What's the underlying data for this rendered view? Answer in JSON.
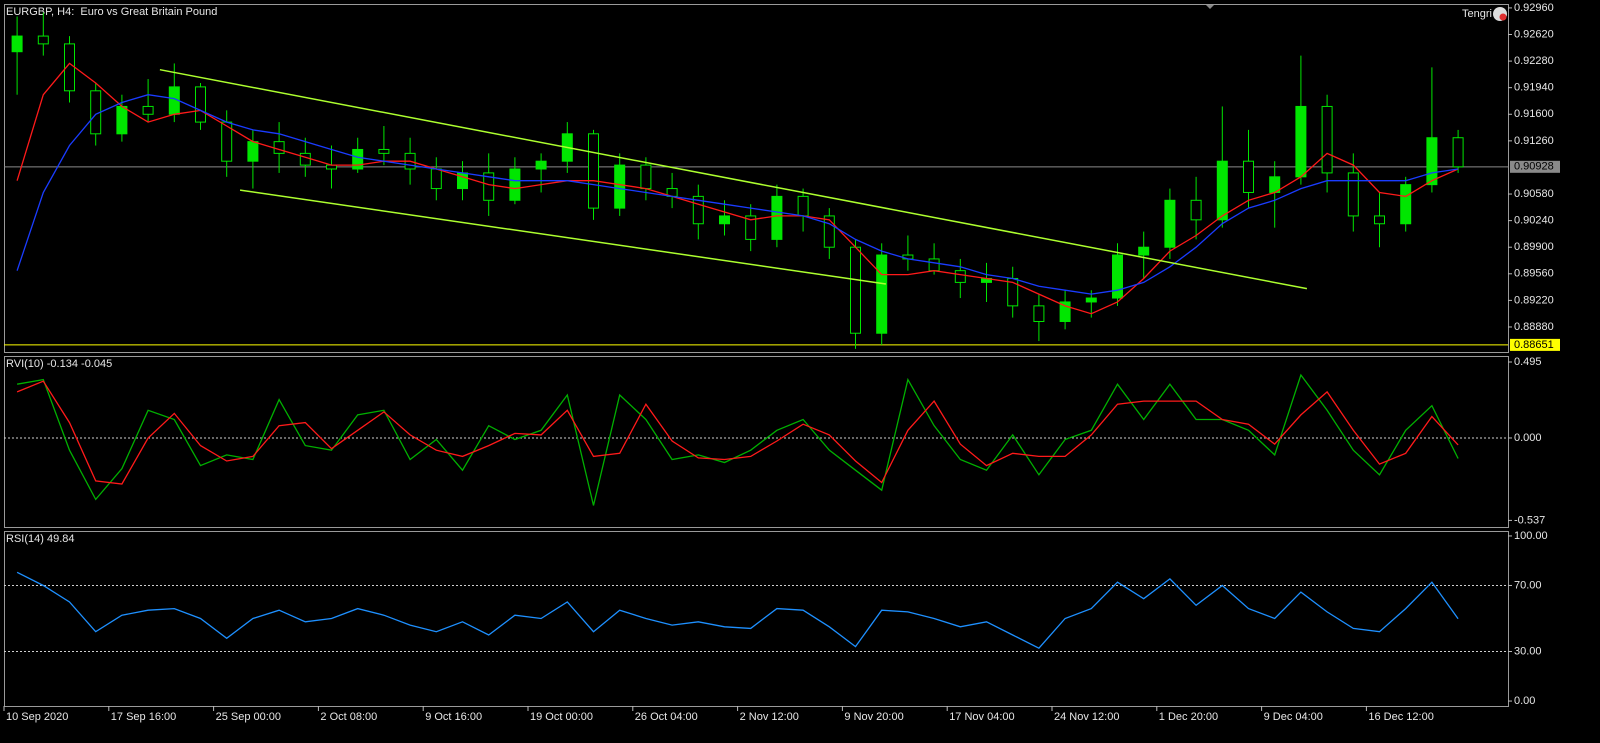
{
  "chart_data": [
    {
      "type": "candlestick",
      "title": "EURGBP, H4:  Euro vs Great Britain Pound",
      "user": "Tengri",
      "color": "#00e600",
      "categories": [
        "10 Sep 2020",
        null,
        null,
        null,
        "17 Sep 16:00",
        null,
        null,
        null,
        "25 Sep 00:00",
        null,
        null,
        null,
        "2 Oct 08:00",
        null,
        null,
        null,
        "9 Oct 16:00",
        null,
        null,
        null,
        "19 Oct 00:00",
        null,
        null,
        null,
        "26 Oct 04:00",
        null,
        null,
        null,
        "2 Nov 12:00",
        null,
        null,
        null,
        "9 Nov 20:00",
        null,
        null,
        null,
        "17 Nov 04:00",
        null,
        null,
        null,
        "24 Nov 12:00",
        null,
        null,
        null,
        "1 Dec 20:00",
        null,
        null,
        null,
        "9 Dec 04:00",
        null,
        null,
        null,
        "16 Dec 12:00",
        null,
        null,
        null
      ],
      "open": [
        0.924,
        0.926,
        0.925,
        0.919,
        0.9135,
        0.917,
        0.916,
        0.9195,
        0.915,
        0.91,
        0.9125,
        0.911,
        0.9095,
        0.909,
        0.9115,
        0.911,
        0.909,
        0.9065,
        0.9085,
        0.905,
        0.909,
        0.91,
        0.9135,
        0.904,
        0.9095,
        0.9065,
        0.9055,
        0.902,
        0.903,
        0.9,
        0.9055,
        0.903,
        0.899,
        0.888,
        0.898,
        0.8975,
        0.896,
        0.8945,
        0.895,
        0.8915,
        0.8895,
        0.892,
        0.8925,
        0.898,
        0.899,
        0.905,
        0.9025,
        0.91,
        0.906,
        0.908,
        0.917,
        0.9085,
        0.903,
        0.902,
        0.907,
        0.913
      ],
      "high": [
        0.9285,
        0.929,
        0.926,
        0.92,
        0.9185,
        0.9205,
        0.9225,
        0.92,
        0.9165,
        0.914,
        0.915,
        0.913,
        0.912,
        0.913,
        0.9145,
        0.913,
        0.9105,
        0.91,
        0.911,
        0.9105,
        0.911,
        0.915,
        0.914,
        0.911,
        0.9105,
        0.9085,
        0.907,
        0.905,
        0.9045,
        0.907,
        0.9065,
        0.904,
        0.9,
        0.8995,
        0.9005,
        0.8995,
        0.8975,
        0.897,
        0.8965,
        0.893,
        0.8935,
        0.8935,
        0.8995,
        0.901,
        0.9065,
        0.908,
        0.917,
        0.914,
        0.91,
        0.9235,
        0.9185,
        0.911,
        0.906,
        0.908,
        0.922,
        0.914
      ],
      "low": [
        0.9185,
        0.9235,
        0.9175,
        0.912,
        0.9125,
        0.915,
        0.915,
        0.914,
        0.908,
        0.9065,
        0.9085,
        0.908,
        0.9065,
        0.9085,
        0.9095,
        0.907,
        0.905,
        0.905,
        0.903,
        0.9045,
        0.906,
        0.9085,
        0.9025,
        0.903,
        0.905,
        0.904,
        0.9,
        0.9005,
        0.8985,
        0.899,
        0.901,
        0.8975,
        0.886,
        0.8865,
        0.896,
        0.8955,
        0.8925,
        0.892,
        0.89,
        0.887,
        0.8885,
        0.89,
        0.8915,
        0.895,
        0.8975,
        0.9,
        0.9015,
        0.904,
        0.9015,
        0.907,
        0.906,
        0.901,
        0.899,
        0.901,
        0.906,
        0.9085
      ],
      "close": [
        0.926,
        0.925,
        0.919,
        0.9135,
        0.917,
        0.916,
        0.9195,
        0.915,
        0.91,
        0.9125,
        0.911,
        0.9095,
        0.909,
        0.9115,
        0.911,
        0.909,
        0.9065,
        0.9085,
        0.905,
        0.909,
        0.91,
        0.9135,
        0.904,
        0.9095,
        0.9065,
        0.9055,
        0.902,
        0.903,
        0.9,
        0.9055,
        0.903,
        0.899,
        0.888,
        0.898,
        0.8975,
        0.896,
        0.8945,
        0.895,
        0.8915,
        0.8895,
        0.892,
        0.8925,
        0.898,
        0.899,
        0.905,
        0.9025,
        0.91,
        0.906,
        0.908,
        0.917,
        0.9085,
        0.903,
        0.902,
        0.907,
        0.913,
        0.90928
      ],
      "series": [
        {
          "color": "#ff1a1a",
          "values": [
            0.9075,
            0.9185,
            0.9225,
            0.92,
            0.917,
            0.915,
            0.916,
            0.9165,
            0.9145,
            0.9125,
            0.9115,
            0.9105,
            0.9095,
            0.9095,
            0.91,
            0.91,
            0.909,
            0.908,
            0.907,
            0.9065,
            0.907,
            0.9075,
            0.9075,
            0.907,
            0.9065,
            0.9055,
            0.9045,
            0.9035,
            0.9025,
            0.903,
            0.903,
            0.9025,
            0.899,
            0.8955,
            0.8955,
            0.896,
            0.8955,
            0.895,
            0.8945,
            0.893,
            0.8915,
            0.8905,
            0.892,
            0.895,
            0.8985,
            0.9005,
            0.903,
            0.905,
            0.906,
            0.908,
            0.911,
            0.9095,
            0.906,
            0.9055,
            0.9075,
            0.909
          ]
        },
        {
          "color": "#1a3cff",
          "values": [
            0.896,
            0.906,
            0.912,
            0.916,
            0.9175,
            0.9185,
            0.918,
            0.9165,
            0.915,
            0.914,
            0.9135,
            0.9125,
            0.9115,
            0.9105,
            0.91,
            0.9095,
            0.909,
            0.9085,
            0.908,
            0.9075,
            0.9075,
            0.9075,
            0.907,
            0.9065,
            0.906,
            0.9055,
            0.905,
            0.9045,
            0.904,
            0.9035,
            0.903,
            0.902,
            0.9,
            0.8985,
            0.8975,
            0.897,
            0.8965,
            0.8955,
            0.895,
            0.894,
            0.8935,
            0.893,
            0.8935,
            0.8945,
            0.8965,
            0.899,
            0.902,
            0.904,
            0.905,
            0.9065,
            0.9075,
            0.9075,
            0.9075,
            0.9075,
            0.9085,
            0.909
          ]
        }
      ],
      "trendlines": [
        {
          "color": "#adff2f",
          "x": [
            5.45,
            49.23
          ],
          "y": [
            0.9217,
            0.8937
          ]
        },
        {
          "color": "#adff2f",
          "x": [
            8.51,
            33.16
          ],
          "y": [
            0.9063,
            0.8943
          ]
        }
      ],
      "hline": {
        "value": 0.88651,
        "color": "#ffff00"
      },
      "price_line_color": "#8a8a8a",
      "ylim": [
        0.8856,
        0.9301
      ],
      "yticks": [
        {
          "value": 0.9296,
          "label": "0.92960"
        },
        {
          "value": 0.9262,
          "label": "0.92620"
        },
        {
          "value": 0.9228,
          "label": "0.92280"
        },
        {
          "value": 0.9194,
          "label": "0.91940"
        },
        {
          "value": 0.916,
          "label": "0.91600"
        },
        {
          "value": 0.9126,
          "label": "0.91260"
        },
        {
          "value": 0.9058,
          "label": "0.90580"
        },
        {
          "value": 0.9024,
          "label": "0.90240"
        },
        {
          "value": 0.899,
          "label": "0.89900"
        },
        {
          "value": 0.8956,
          "label": "0.89560"
        },
        {
          "value": 0.8922,
          "label": "0.89220"
        },
        {
          "value": 0.8888,
          "label": "0.88880"
        }
      ]
    },
    {
      "type": "line",
      "title": "RVI(10)",
      "series": [
        {
          "color": "#00b000",
          "values": [
            0.35,
            0.38,
            -0.08,
            -0.4,
            -0.2,
            0.18,
            0.12,
            -0.18,
            -0.11,
            -0.14,
            0.25,
            -0.05,
            -0.08,
            0.15,
            0.18,
            -0.14,
            -0.01,
            -0.21,
            0.08,
            -0.01,
            0.05,
            0.28,
            -0.44,
            0.28,
            0.12,
            -0.14,
            -0.11,
            -0.16,
            -0.08,
            0.05,
            0.12,
            -0.08,
            -0.21,
            -0.34,
            0.38,
            0.08,
            -0.14,
            -0.21,
            0.02,
            -0.24,
            -0.01,
            0.05,
            0.35,
            0.12,
            0.35,
            0.12,
            0.12,
            0.05,
            -0.11,
            0.41,
            0.18,
            -0.08,
            -0.24,
            0.05,
            0.21,
            -0.134
          ]
        },
        {
          "color": "#ff1a1a",
          "values": [
            0.3,
            0.37,
            0.1,
            -0.28,
            -0.3,
            0.0,
            0.16,
            -0.05,
            -0.15,
            -0.12,
            0.08,
            0.1,
            -0.07,
            0.05,
            0.17,
            0.02,
            -0.08,
            -0.12,
            -0.05,
            0.03,
            0.02,
            0.18,
            -0.12,
            -0.1,
            0.22,
            -0.02,
            -0.13,
            -0.14,
            -0.12,
            -0.02,
            0.09,
            0.02,
            -0.15,
            -0.29,
            0.05,
            0.24,
            -0.04,
            -0.18,
            -0.1,
            -0.12,
            -0.12,
            0.02,
            0.22,
            0.24,
            0.24,
            0.24,
            0.12,
            0.09,
            -0.04,
            0.15,
            0.3,
            0.05,
            -0.17,
            -0.1,
            0.14,
            -0.045
          ]
        }
      ],
      "levels": [
        0
      ],
      "ylim": [
        -0.58,
        0.534
      ],
      "yticks": [
        0.495,
        {
          "value": 0,
          "label": "0.000"
        },
        -0.537
      ]
    },
    {
      "type": "line",
      "title": "RSI(14)",
      "series": [
        {
          "color": "#1e90ff",
          "values": [
            78,
            70,
            60,
            42,
            52,
            55,
            56,
            50,
            38,
            50,
            55,
            48,
            50,
            56,
            52,
            46,
            42,
            48,
            40,
            52,
            50,
            60,
            42,
            55,
            50,
            46,
            48,
            45,
            44,
            56,
            55,
            45,
            33,
            55,
            54,
            50,
            45,
            48,
            40,
            32,
            50,
            56,
            72,
            62,
            74,
            58,
            70,
            56,
            50,
            66,
            54,
            44,
            42,
            56,
            72,
            49.84
          ]
        }
      ],
      "levels": [
        70,
        30
      ],
      "ylim": [
        -3,
        103
      ],
      "yticks": [
        {
          "value": 100,
          "label": "100.00"
        },
        {
          "value": 70,
          "label": "70.00"
        },
        {
          "value": 30,
          "label": "30.00"
        },
        {
          "value": 0,
          "label": "0.00"
        }
      ]
    }
  ]
}
